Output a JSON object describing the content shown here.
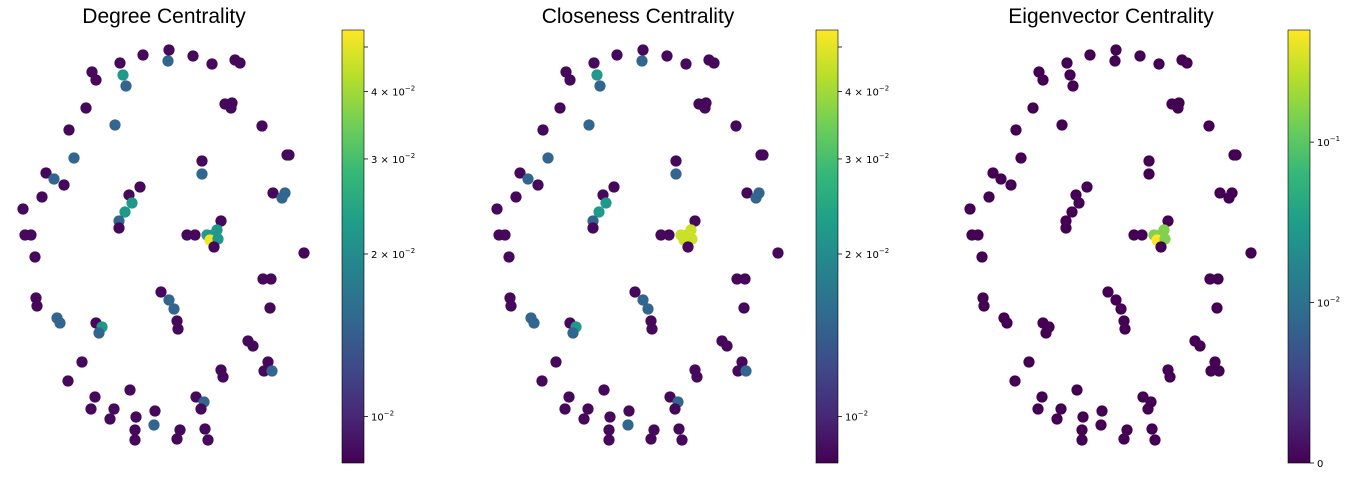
{
  "colors": {
    "viridis_stops": [
      "#440154",
      "#482878",
      "#3e4a89",
      "#31688e",
      "#26828e",
      "#1f9e89",
      "#35b779",
      "#6ece58",
      "#b5de2b",
      "#fde725"
    ],
    "background": "#ffffff"
  },
  "chart_data": [
    {
      "type": "scatter",
      "title": "Degree Centrality",
      "xlabel": "",
      "ylabel": "",
      "grid": false,
      "colorbar": {
        "scale": "log",
        "range": [
          0.0082,
          0.052
        ],
        "ticks": [
          {
            "value": 0.01,
            "label": "10",
            "exp": "−2"
          },
          {
            "value": 0.02,
            "label": "2 × 10",
            "exp": "−2"
          },
          {
            "value": 0.03,
            "label": "3 × 10",
            "exp": "−2"
          },
          {
            "value": 0.04,
            "label": "4 × 10",
            "exp": "−2"
          }
        ]
      },
      "nodes": "network nodes on an elliptical ring plus four interior clusters; hub node at center-right has the maximum value",
      "value_levels": {
        "low": 0.0085,
        "mid": 0.015,
        "high": 0.022,
        "max": 0.05
      }
    },
    {
      "type": "scatter",
      "title": "Closeness Centrality",
      "xlabel": "",
      "ylabel": "",
      "grid": false,
      "colorbar": {
        "scale": "log",
        "range": [
          0.0082,
          0.052
        ],
        "ticks": [
          {
            "value": 0.01,
            "label": "10",
            "exp": "−2"
          },
          {
            "value": 0.02,
            "label": "2 × 10",
            "exp": "−2"
          },
          {
            "value": 0.03,
            "label": "3 × 10",
            "exp": "−2"
          },
          {
            "value": 0.04,
            "label": "4 × 10",
            "exp": "−2"
          }
        ]
      },
      "value_levels": {
        "low": 0.0085,
        "mid": 0.015,
        "high": 0.022,
        "max": 0.045
      }
    },
    {
      "type": "scatter",
      "title": "Eigenvector Centrality",
      "xlabel": "",
      "ylabel": "",
      "grid": false,
      "colorbar": {
        "scale": "symlog",
        "range": [
          0,
          0.5
        ],
        "ticks": [
          {
            "value": 0,
            "label": "0",
            "exp": ""
          },
          {
            "value": 0.01,
            "label": "10",
            "exp": "−2"
          },
          {
            "value": 0.1,
            "label": "10",
            "exp": "−1"
          }
        ]
      },
      "value_levels": {
        "low": 0,
        "mid": 0.03,
        "high": 0.15,
        "max": 0.5
      }
    }
  ]
}
